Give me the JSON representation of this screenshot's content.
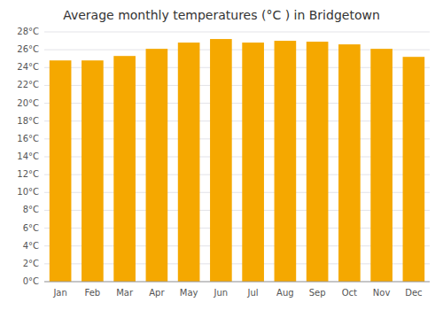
{
  "chart_data": {
    "type": "bar",
    "title": "Average monthly temperatures (°C ) in Bridgetown",
    "categories": [
      "Jan",
      "Feb",
      "Mar",
      "Apr",
      "May",
      "Jun",
      "Jul",
      "Aug",
      "Sep",
      "Oct",
      "Nov",
      "Dec"
    ],
    "values": [
      24.8,
      24.8,
      25.3,
      26.1,
      26.8,
      27.2,
      26.8,
      27.0,
      26.9,
      26.6,
      26.1,
      25.2
    ],
    "color": "#F5A800",
    "ylim": [
      0,
      28
    ],
    "yticks": [
      {
        "value": 0,
        "label": "0°C"
      },
      {
        "value": 2,
        "label": "2°C"
      },
      {
        "value": 4,
        "label": "4°C"
      },
      {
        "value": 6,
        "label": "6°C"
      },
      {
        "value": 8,
        "label": "8°C"
      },
      {
        "value": 10,
        "label": "10°C"
      },
      {
        "value": 12,
        "label": "12°C"
      },
      {
        "value": 14,
        "label": "14°C"
      },
      {
        "value": 16,
        "label": "16°C"
      },
      {
        "value": 18,
        "label": "18°C"
      },
      {
        "value": 20,
        "label": "20°C"
      },
      {
        "value": 22,
        "label": "22°C"
      },
      {
        "value": 24,
        "label": "24°C"
      },
      {
        "value": 26,
        "label": "26°C"
      },
      {
        "value": 28,
        "label": "28°C"
      }
    ],
    "grid": true
  }
}
